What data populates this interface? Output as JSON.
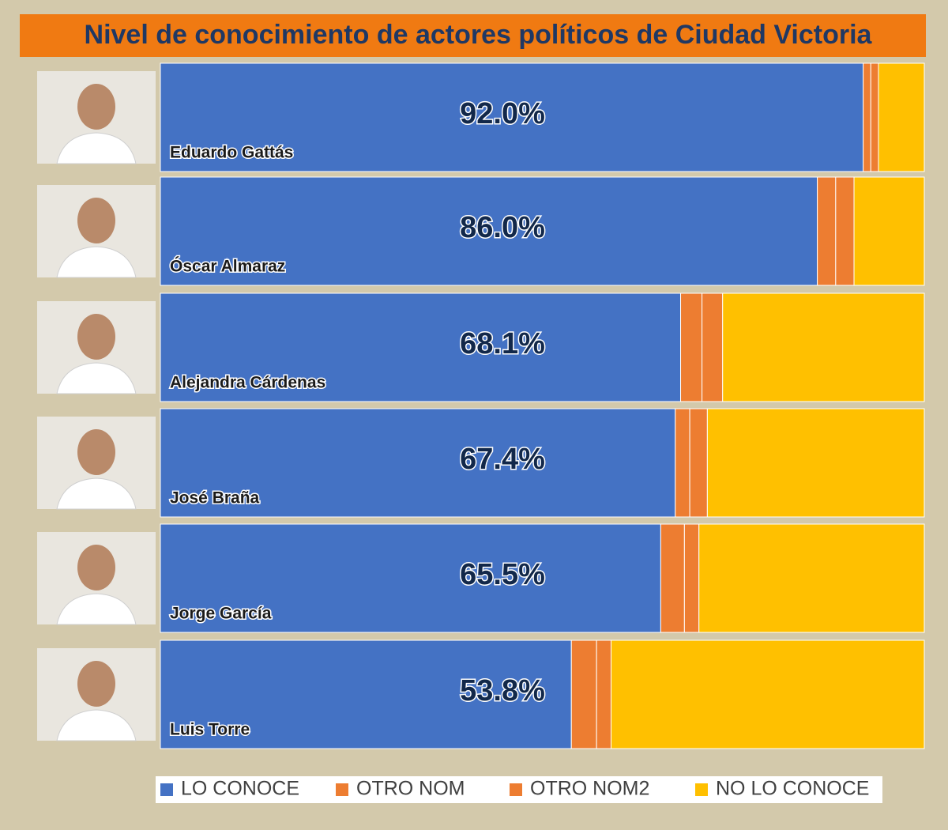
{
  "chart_data": {
    "type": "stacked-bar-horizontal",
    "title": "Nivel de conocimiento de actores políticos de Ciudad Victoria",
    "categories": [
      "Eduardo Gattás",
      "Óscar Almaraz",
      "Alejandra Cárdenas",
      "José Braña",
      "Jorge García",
      "Luis Torre"
    ],
    "series": [
      {
        "name": "LO CONOCE",
        "color": "#4472c4",
        "values": [
          92.0,
          86.0,
          68.1,
          67.4,
          65.5,
          53.8
        ],
        "value_labels": [
          "92.0%",
          "86.0%",
          "68.1%",
          "67.4%",
          "65.5%",
          "53.8%"
        ]
      },
      {
        "name": "OTRO NOM",
        "color": "#ed7d31",
        "values": [
          1.0,
          2.4,
          2.8,
          1.9,
          3.1,
          3.3
        ]
      },
      {
        "name": "OTRO NOM2",
        "color": "#ed7d31",
        "values": [
          1.0,
          2.4,
          2.7,
          2.3,
          1.9,
          1.9
        ]
      },
      {
        "name": "NO LO CONOCE",
        "color": "#ffc000",
        "values": [
          6.0,
          9.2,
          26.4,
          28.4,
          29.5,
          41.0
        ]
      }
    ],
    "xlim": [
      0,
      100
    ],
    "legend": "bottom"
  }
}
